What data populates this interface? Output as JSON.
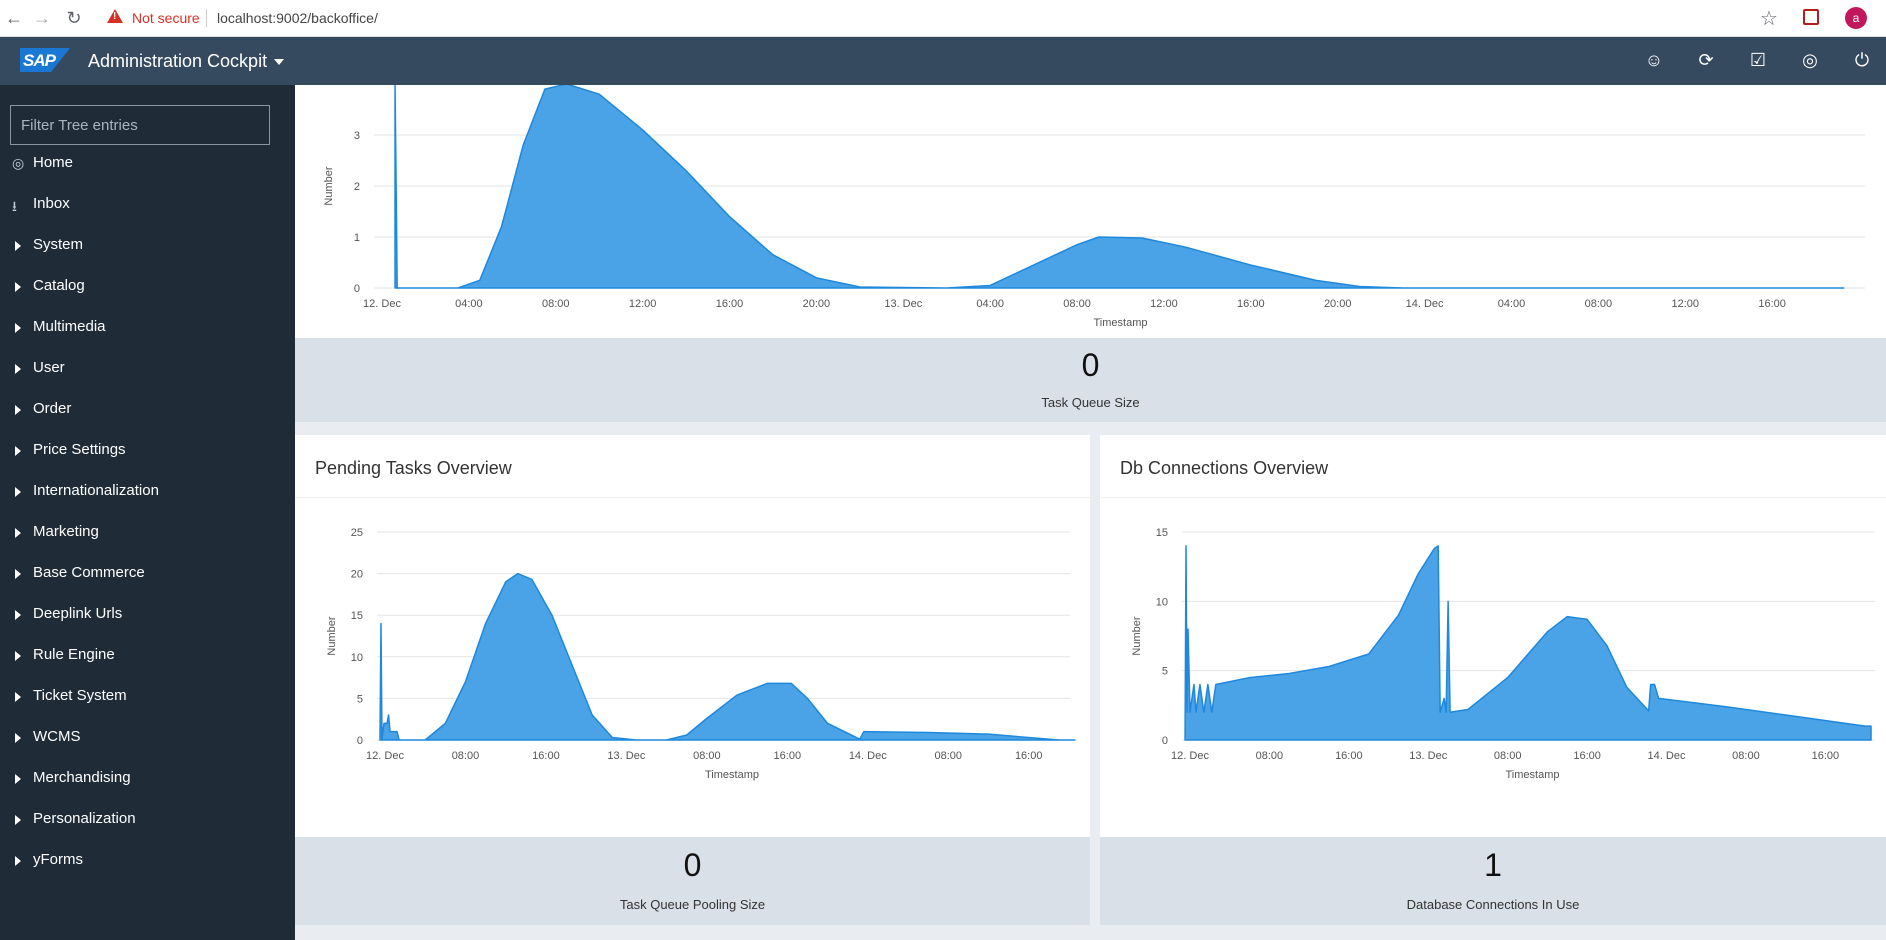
{
  "browser": {
    "warning_icon": "warning-triangle-icon",
    "security_label": "Not secure",
    "url": "localhost:9002/backoffice/",
    "avatar_letter": "a"
  },
  "header": {
    "logo": "SAP",
    "app_title": "Administration Cockpit",
    "icons": [
      "user-settings-icon",
      "sync-icon",
      "checklist-icon",
      "globe-icon",
      "power-icon"
    ]
  },
  "sidebar": {
    "filter_placeholder": "Filter Tree entries",
    "items": [
      {
        "label": "Home",
        "icon": "home-icon"
      },
      {
        "label": "Inbox",
        "icon": "inbox-icon"
      },
      {
        "label": "System"
      },
      {
        "label": "Catalog"
      },
      {
        "label": "Multimedia"
      },
      {
        "label": "User"
      },
      {
        "label": "Order"
      },
      {
        "label": "Price Settings"
      },
      {
        "label": "Internationalization"
      },
      {
        "label": "Marketing"
      },
      {
        "label": "Base Commerce"
      },
      {
        "label": "Deeplink Urls"
      },
      {
        "label": "Rule Engine"
      },
      {
        "label": "Ticket System"
      },
      {
        "label": "WCMS"
      },
      {
        "label": "Merchandising"
      },
      {
        "label": "Personalization"
      },
      {
        "label": "yForms"
      }
    ]
  },
  "colors": {
    "fill": "#4aa3e6",
    "stroke": "#1f88dc",
    "header": "#354a5f",
    "sidebar": "#1f2b37"
  },
  "panels": {
    "task_queue": {
      "kpi_value": "0",
      "kpi_label": "Task Queue Size"
    },
    "pending_tasks": {
      "title": "Pending Tasks Overview",
      "kpi_value": "0",
      "kpi_label": "Task Queue Pooling Size"
    },
    "db_connections": {
      "title": "Db Connections Overview",
      "kpi_value": "1",
      "kpi_label": "Database Connections In Use"
    }
  },
  "chart_data": [
    {
      "type": "area",
      "xlabel": "Timestamp",
      "ylabel": "Number",
      "x_range": [
        0,
        68
      ],
      "ylim": [
        0,
        4
      ],
      "y_ticks": [
        0,
        1,
        2,
        3
      ],
      "x_ticks": [
        {
          "x": 0,
          "label": "12. Dec"
        },
        {
          "x": 4,
          "label": "04:00"
        },
        {
          "x": 8,
          "label": "08:00"
        },
        {
          "x": 12,
          "label": "12:00"
        },
        {
          "x": 16,
          "label": "16:00"
        },
        {
          "x": 20,
          "label": "20:00"
        },
        {
          "x": 24,
          "label": "13. Dec"
        },
        {
          "x": 28,
          "label": "04:00"
        },
        {
          "x": 32,
          "label": "08:00"
        },
        {
          "x": 36,
          "label": "12:00"
        },
        {
          "x": 40,
          "label": "16:00"
        },
        {
          "x": 44,
          "label": "20:00"
        },
        {
          "x": 48,
          "label": "14. Dec"
        },
        {
          "x": 52,
          "label": "04:00"
        },
        {
          "x": 56,
          "label": "08:00"
        },
        {
          "x": 60,
          "label": "12:00"
        },
        {
          "x": 64,
          "label": "16:00"
        }
      ],
      "points": [
        [
          0.6,
          4.0
        ],
        [
          0.7,
          0
        ],
        [
          3.5,
          0
        ],
        [
          4.5,
          0.15
        ],
        [
          5.5,
          1.2
        ],
        [
          6.5,
          2.8
        ],
        [
          7.5,
          3.9
        ],
        [
          8.5,
          4.0
        ],
        [
          10,
          3.8
        ],
        [
          12,
          3.1
        ],
        [
          14,
          2.3
        ],
        [
          16,
          1.4
        ],
        [
          18,
          0.65
        ],
        [
          20,
          0.2
        ],
        [
          22,
          0.02
        ],
        [
          26,
          0
        ],
        [
          28,
          0.05
        ],
        [
          30,
          0.45
        ],
        [
          32,
          0.85
        ],
        [
          33,
          1.0
        ],
        [
          35,
          0.98
        ],
        [
          37,
          0.8
        ],
        [
          40,
          0.45
        ],
        [
          43,
          0.15
        ],
        [
          45,
          0.03
        ],
        [
          47,
          0
        ],
        [
          67.3,
          0
        ]
      ]
    },
    {
      "type": "area",
      "xlabel": "Timestamp",
      "ylabel": "Number",
      "x_range": [
        0,
        34.5
      ],
      "ylim": [
        0,
        25
      ],
      "y_ticks": [
        0,
        5,
        10,
        15,
        20,
        25
      ],
      "x_ticks": [
        {
          "x": 0,
          "label": "12. Dec"
        },
        {
          "x": 4,
          "label": "08:00"
        },
        {
          "x": 8,
          "label": "16:00"
        },
        {
          "x": 12,
          "label": "13. Dec"
        },
        {
          "x": 16,
          "label": "08:00"
        },
        {
          "x": 20,
          "label": "16:00"
        },
        {
          "x": 24,
          "label": "14. Dec"
        },
        {
          "x": 28,
          "label": "08:00"
        },
        {
          "x": 32,
          "label": "16:00"
        }
      ],
      "points": [
        [
          -0.25,
          0
        ],
        [
          -0.2,
          14
        ],
        [
          -0.15,
          0
        ],
        [
          -0.05,
          2
        ],
        [
          0.1,
          2
        ],
        [
          0.18,
          3
        ],
        [
          0.25,
          1
        ],
        [
          0.6,
          1
        ],
        [
          0.7,
          0
        ],
        [
          2,
          0
        ],
        [
          3,
          2
        ],
        [
          4,
          7
        ],
        [
          5,
          14
        ],
        [
          6,
          19
        ],
        [
          6.6,
          20
        ],
        [
          7.3,
          19.3
        ],
        [
          8.3,
          15
        ],
        [
          9.3,
          9
        ],
        [
          10.3,
          3
        ],
        [
          11.3,
          0.3
        ],
        [
          12.5,
          0
        ],
        [
          14,
          0
        ],
        [
          15,
          0.6
        ],
        [
          16,
          2.6
        ],
        [
          17.5,
          5.4
        ],
        [
          19,
          6.8
        ],
        [
          20.2,
          6.8
        ],
        [
          21,
          5
        ],
        [
          22,
          2
        ],
        [
          23.6,
          0.1
        ],
        [
          23.8,
          1
        ],
        [
          27,
          0.9
        ],
        [
          30,
          0.7
        ],
        [
          33.5,
          0
        ],
        [
          34.3,
          0
        ]
      ]
    },
    {
      "type": "area",
      "xlabel": "Timestamp",
      "ylabel": "Number",
      "x_range": [
        0,
        34.5
      ],
      "ylim": [
        0,
        15
      ],
      "y_ticks": [
        0,
        5,
        10,
        15
      ],
      "x_ticks": [
        {
          "x": 0,
          "label": "12. Dec"
        },
        {
          "x": 4,
          "label": "08:00"
        },
        {
          "x": 8,
          "label": "16:00"
        },
        {
          "x": 12,
          "label": "13. Dec"
        },
        {
          "x": 16,
          "label": "08:00"
        },
        {
          "x": 20,
          "label": "16:00"
        },
        {
          "x": 24,
          "label": "14. Dec"
        },
        {
          "x": 28,
          "label": "08:00"
        },
        {
          "x": 32,
          "label": "16:00"
        }
      ],
      "points": [
        [
          -0.25,
          0
        ],
        [
          -0.2,
          14
        ],
        [
          -0.15,
          2
        ],
        [
          -0.1,
          8
        ],
        [
          0,
          2
        ],
        [
          0.2,
          4
        ],
        [
          0.3,
          2
        ],
        [
          0.5,
          4
        ],
        [
          0.7,
          2
        ],
        [
          0.9,
          4
        ],
        [
          1.1,
          2
        ],
        [
          1.3,
          4
        ],
        [
          3,
          4.5
        ],
        [
          5,
          4.8
        ],
        [
          7,
          5.3
        ],
        [
          9,
          6.2
        ],
        [
          10.5,
          9
        ],
        [
          11.5,
          12
        ],
        [
          12.3,
          13.8
        ],
        [
          12.5,
          14
        ],
        [
          12.6,
          2
        ],
        [
          12.8,
          3
        ],
        [
          12.9,
          2
        ],
        [
          13,
          10
        ],
        [
          13.1,
          2
        ],
        [
          14,
          2.2
        ],
        [
          16,
          4.5
        ],
        [
          18,
          7.8
        ],
        [
          19,
          8.9
        ],
        [
          20,
          8.7
        ],
        [
          21,
          6.8
        ],
        [
          22,
          3.8
        ],
        [
          23.1,
          2.1
        ],
        [
          23.2,
          4
        ],
        [
          23.4,
          4
        ],
        [
          23.6,
          3
        ],
        [
          27,
          2.4
        ],
        [
          30,
          1.8
        ],
        [
          34,
          1
        ],
        [
          34.3,
          1
        ]
      ]
    }
  ]
}
